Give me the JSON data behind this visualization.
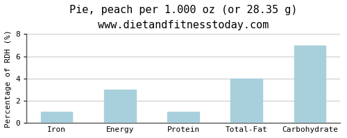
{
  "title": "Pie, peach per 1.000 oz (or 28.35 g)",
  "subtitle": "www.dietandfitnesstoday.com",
  "categories": [
    "Iron",
    "Energy",
    "Protein",
    "Total-Fat",
    "Carbohydrate"
  ],
  "values": [
    1.0,
    3.0,
    1.0,
    4.0,
    7.0
  ],
  "bar_color": "#a8d0dc",
  "ylabel": "Percentage of RDH (%)",
  "ylim": [
    0,
    8
  ],
  "yticks": [
    0,
    2,
    4,
    6,
    8
  ],
  "background_color": "#ffffff",
  "plot_bg_color": "#ffffff",
  "grid_color": "#cccccc",
  "border_color": "#555555",
  "title_fontsize": 11,
  "subtitle_fontsize": 9,
  "label_fontsize": 8,
  "tick_fontsize": 8
}
